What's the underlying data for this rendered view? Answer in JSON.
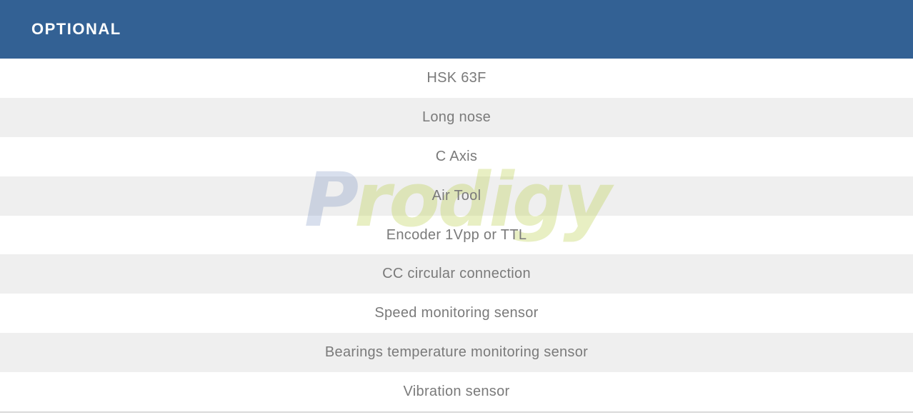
{
  "header": {
    "title": "OPTIONAL",
    "bg_color": "#336194",
    "text_color": "#ffffff"
  },
  "rows": [
    {
      "label": "HSK 63F"
    },
    {
      "label": "Long nose"
    },
    {
      "label": "C Axis"
    },
    {
      "label": "Air Tool"
    },
    {
      "label": "Encoder 1Vpp or TTL"
    },
    {
      "label": "CC circular connection"
    },
    {
      "label": "Speed monitoring sensor"
    },
    {
      "label": "Bearings temperature monitoring sensor"
    },
    {
      "label": "Vibration sensor"
    }
  ],
  "watermark": {
    "first_letter": "P",
    "rest": "rodigy",
    "first_color": "#3b5ea6",
    "rest_color": "#b2cb37"
  },
  "colors": {
    "row_alt_bg": "#efefef",
    "row_text": "#7a7a7a",
    "divider": "#d9d9d9"
  }
}
